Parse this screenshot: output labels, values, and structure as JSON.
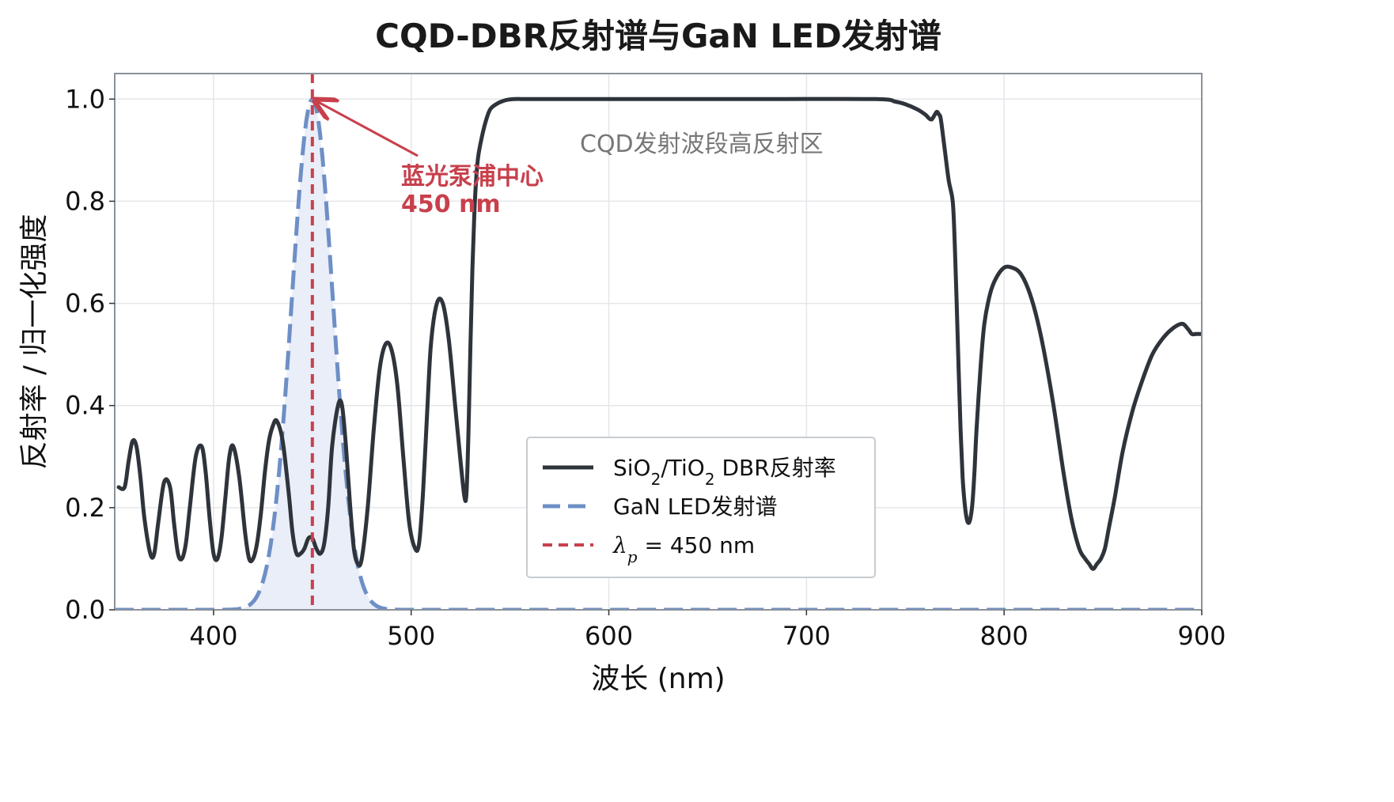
{
  "colors": {
    "dbr": "#2f343b",
    "led": "#6e8fc6",
    "led_fill": "#e9eef8",
    "pump": "#c8404c",
    "grid": "#e4e6ea",
    "frame": "#8a929b",
    "annot_gray": "#777777"
  },
  "chart_data": {
    "type": "line",
    "title": "CQD-DBR反射谱与GaN LED发射谱",
    "xlabel": "波长 (nm)",
    "ylabel": "反射率 / 归一化强度",
    "xlim": [
      350,
      900
    ],
    "ylim": [
      0.0,
      1.05
    ],
    "xticks": [
      400,
      500,
      600,
      700,
      800,
      900
    ],
    "yticks": [
      0.0,
      0.2,
      0.4,
      0.6,
      0.8,
      1.0
    ],
    "xtick_labels": [
      "400",
      "500",
      "600",
      "700",
      "800",
      "900"
    ],
    "ytick_labels": [
      "0.0",
      "0.2",
      "0.4",
      "0.6",
      "0.8",
      "1.0"
    ],
    "grid": true,
    "legend": {
      "placement": "lower-right",
      "entries": [
        {
          "label_main": "SiO",
          "sub1": "2",
          "mid": "/TiO",
          "sub2": "2",
          "tail": " DBR反射率",
          "style": "solid"
        },
        {
          "label_main": "GaN LED发射谱",
          "style": "dashed"
        },
        {
          "label_lambda": "λ",
          "label_sub": "p",
          "label_rest": " = 450 nm",
          "style": "dashed-red"
        }
      ]
    },
    "series": [
      {
        "name": "SiO2/TiO2 DBR反射率",
        "style": "solid",
        "x": [
          352,
          355,
          357,
          359,
          361,
          363,
          365,
          368,
          370,
          372,
          375,
          378,
          380,
          382,
          384,
          386,
          388,
          391,
          394,
          396,
          398,
          400,
          402,
          404,
          406,
          408,
          410,
          413,
          416,
          418,
          420,
          422,
          424,
          426,
          428,
          430,
          432,
          435,
          438,
          440,
          442,
          444,
          446,
          448,
          450,
          452,
          454,
          456,
          458,
          460,
          463,
          465,
          467,
          469,
          471,
          473,
          475,
          478,
          481,
          484,
          487,
          490,
          493,
          496,
          499,
          502,
          504,
          506,
          508,
          510,
          513,
          516,
          519,
          522,
          525,
          527,
          528,
          529,
          530,
          531,
          532,
          533,
          534,
          536,
          538,
          540,
          543,
          547,
          552,
          560,
          580,
          620,
          680,
          735,
          745,
          750,
          756,
          760,
          763,
          765,
          766,
          767,
          768,
          770,
          772,
          774,
          775,
          776,
          777,
          778,
          779,
          780,
          781,
          782,
          783,
          784,
          785,
          786,
          788,
          790,
          793,
          796,
          800,
          804,
          808,
          812,
          816,
          820,
          825,
          830,
          834,
          838,
          841,
          843,
          845,
          847,
          849,
          851,
          853,
          856,
          860,
          865,
          870,
          875,
          880,
          885,
          890,
          893,
          895,
          897,
          900
        ],
        "y": [
          0.24,
          0.24,
          0.29,
          0.33,
          0.32,
          0.26,
          0.18,
          0.11,
          0.11,
          0.17,
          0.25,
          0.24,
          0.17,
          0.11,
          0.1,
          0.13,
          0.2,
          0.3,
          0.32,
          0.27,
          0.18,
          0.11,
          0.1,
          0.14,
          0.22,
          0.3,
          0.32,
          0.26,
          0.15,
          0.1,
          0.1,
          0.13,
          0.19,
          0.27,
          0.33,
          0.36,
          0.37,
          0.33,
          0.23,
          0.15,
          0.11,
          0.11,
          0.12,
          0.14,
          0.14,
          0.12,
          0.11,
          0.13,
          0.2,
          0.32,
          0.4,
          0.4,
          0.32,
          0.21,
          0.12,
          0.09,
          0.1,
          0.2,
          0.35,
          0.47,
          0.52,
          0.51,
          0.44,
          0.3,
          0.17,
          0.12,
          0.13,
          0.23,
          0.38,
          0.52,
          0.6,
          0.6,
          0.53,
          0.41,
          0.29,
          0.22,
          0.23,
          0.35,
          0.52,
          0.67,
          0.78,
          0.85,
          0.89,
          0.93,
          0.96,
          0.98,
          0.99,
          0.997,
          1.0,
          1.0,
          1.0,
          1.0,
          1.0,
          1.0,
          0.995,
          0.99,
          0.98,
          0.97,
          0.96,
          0.97,
          0.975,
          0.97,
          0.96,
          0.9,
          0.84,
          0.8,
          0.72,
          0.6,
          0.47,
          0.35,
          0.26,
          0.21,
          0.18,
          0.17,
          0.18,
          0.21,
          0.27,
          0.35,
          0.47,
          0.56,
          0.62,
          0.65,
          0.67,
          0.67,
          0.66,
          0.63,
          0.58,
          0.51,
          0.4,
          0.27,
          0.18,
          0.12,
          0.1,
          0.09,
          0.08,
          0.09,
          0.1,
          0.12,
          0.16,
          0.22,
          0.31,
          0.39,
          0.45,
          0.5,
          0.53,
          0.55,
          0.56,
          0.55,
          0.54,
          0.54,
          0.54
        ]
      },
      {
        "name": "GaN LED发射谱",
        "style": "dashed",
        "center": 450,
        "sigma": 10.4,
        "peak": 1.0
      },
      {
        "name": "λp = 450 nm",
        "style": "vline-dashed",
        "x": 450
      }
    ],
    "annotations": [
      {
        "lines": [
          "蓝光泵浦中心",
          "450 nm"
        ],
        "color": "red",
        "arrow_to": [
          450,
          1.0
        ],
        "text_at": [
          495,
          0.83
        ]
      },
      {
        "lines": [
          "CQD发射波段高反射区"
        ],
        "color": "gray",
        "text_at": [
          585,
          0.915
        ]
      }
    ]
  }
}
